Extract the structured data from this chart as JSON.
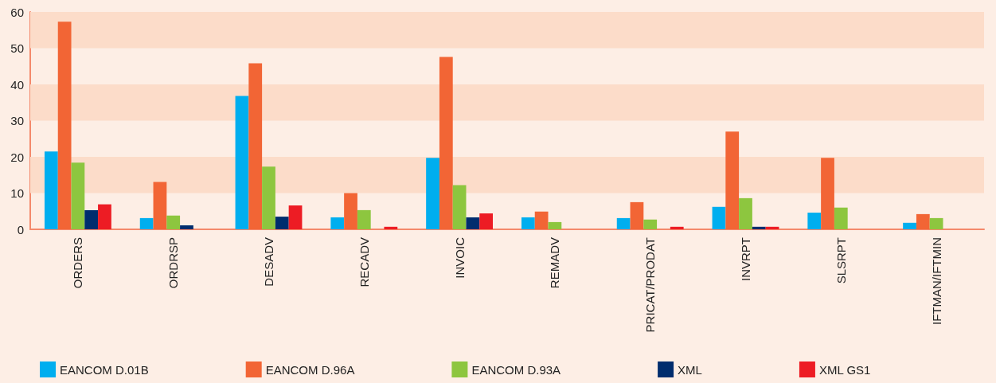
{
  "chart_data": {
    "type": "bar",
    "categories": [
      "ORDERS",
      "ORDRSP",
      "DESADV",
      "RECADV",
      "INVOIC",
      "REMADV",
      "PRICAT/PRODAT",
      "INVRPT",
      "SLSRPT",
      "IFTMAN/IFTMIN"
    ],
    "series": [
      {
        "name": "EANCOM D.01B",
        "color": "#00aeef",
        "values": [
          21.5,
          3.1,
          36.8,
          3.3,
          19.7,
          3.3,
          3.1,
          6.2,
          4.6,
          1.8
        ]
      },
      {
        "name": "EANCOM D.96A",
        "color": "#f26535",
        "values": [
          57.3,
          13.1,
          45.8,
          10.0,
          47.6,
          4.9,
          7.5,
          27.0,
          19.7,
          4.2
        ]
      },
      {
        "name": "EANCOM D.93A",
        "color": "#8dc63f",
        "values": [
          18.4,
          3.8,
          17.3,
          5.3,
          12.2,
          2.0,
          2.7,
          8.6,
          6.0,
          3.1
        ]
      },
      {
        "name": "XML",
        "color": "#002d6e",
        "values": [
          5.3,
          1.1,
          3.5,
          null,
          3.3,
          null,
          null,
          0.7,
          null,
          null
        ]
      },
      {
        "name": "XML GS1",
        "color": "#ed1c24",
        "values": [
          6.9,
          null,
          6.6,
          0.7,
          4.4,
          null,
          0.7,
          0.7,
          null,
          null
        ]
      }
    ],
    "ylim": [
      0,
      60
    ],
    "yticks": [
      0,
      10,
      20,
      30,
      40,
      50,
      60
    ],
    "legend": "bottom",
    "bands": [
      {
        "axis": "y",
        "from": 10,
        "to": 20,
        "color": "#fcdcc9"
      },
      {
        "axis": "y",
        "from": 30,
        "to": 40,
        "color": "#fcdcc9"
      },
      {
        "axis": "y",
        "from": 50,
        "to": 60,
        "color": "#fcdcc9"
      }
    ]
  }
}
